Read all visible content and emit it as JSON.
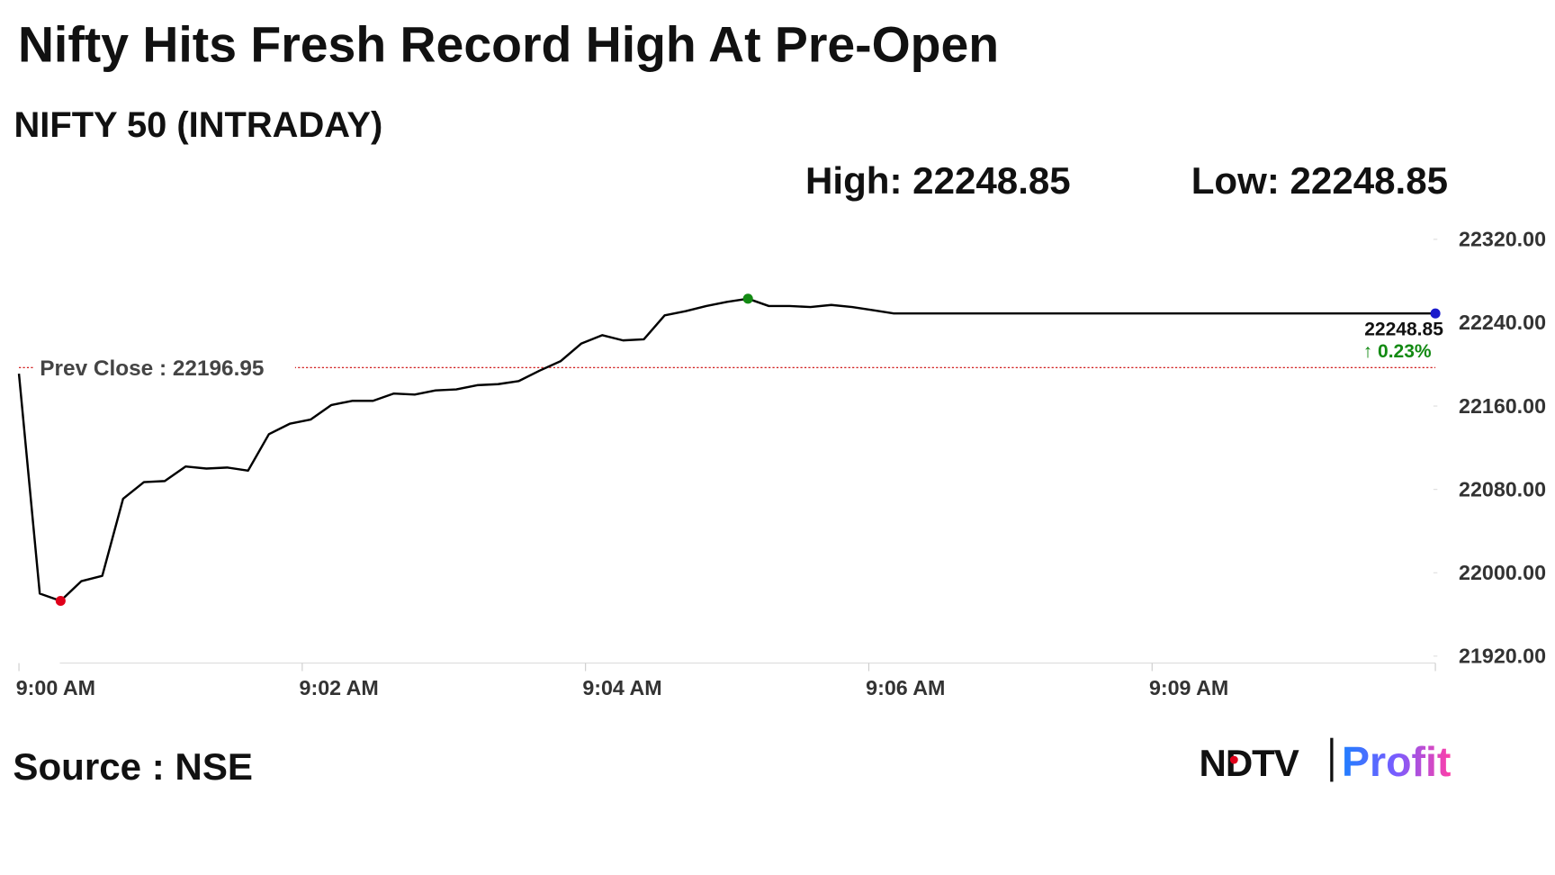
{
  "chart_data": {
    "type": "line",
    "title": "Nifty Hits Fresh Record High At Pre-Open",
    "subtitle": "NIFTY 50 (INTRADAY)",
    "high_label": "High: 22248.85",
    "low_label": "Low: 22248.85",
    "source": "Source : NSE",
    "logo": [
      "NDTV",
      "Profit"
    ],
    "xticks": [
      "9:00 AM",
      "9:02 AM",
      "9:04 AM",
      "9:06 AM",
      "9:09 AM"
    ],
    "ylim": [
      21920,
      22320
    ],
    "yticks": [
      {
        "value": 21920,
        "label": "21920.00"
      },
      {
        "value": 22000,
        "label": "22000.00"
      },
      {
        "value": 22080,
        "label": "22080.00"
      },
      {
        "value": 22160,
        "label": "22160.00"
      },
      {
        "value": 22240,
        "label": "22240.00"
      },
      {
        "value": 22320,
        "label": "22320.00"
      }
    ],
    "prev_close": {
      "value": 22196.95,
      "label": "Prev Close : 22196.95",
      "color": "#cc0000"
    },
    "last_label": "22248.85",
    "change_label": "↑ 0.23%",
    "change_color": "#138a13",
    "series": [
      {
        "name": "NIFTY 50",
        "color": "#000000",
        "low_color": "#e0001a",
        "high_color": "#138a13",
        "last_color": "#1a1acc",
        "values": [
          22191,
          21980,
          21973,
          21992,
          21997,
          22071,
          22087,
          22088,
          22102,
          22100,
          22101,
          22098,
          22133,
          22143,
          22147,
          22161,
          22165,
          22165,
          22172,
          22171,
          22175,
          22176,
          22180,
          22181,
          22184,
          22194,
          22203,
          22220,
          22228,
          22223,
          22224,
          22247,
          22251,
          22256,
          22260,
          22263,
          22256,
          22256,
          22255,
          22257,
          22255,
          22252,
          22248.85,
          22248.85,
          22248.85,
          22248.85,
          22248.85,
          22248.85,
          22248.85,
          22248.85,
          22248.85,
          22248.85,
          22248.85,
          22248.85,
          22248.85,
          22248.85,
          22248.85,
          22248.85,
          22248.85,
          22248.85,
          22248.85,
          22248.85,
          22248.85,
          22248.85,
          22248.85,
          22248.85,
          22248.85,
          22248.85,
          22248.85
        ]
      }
    ]
  }
}
